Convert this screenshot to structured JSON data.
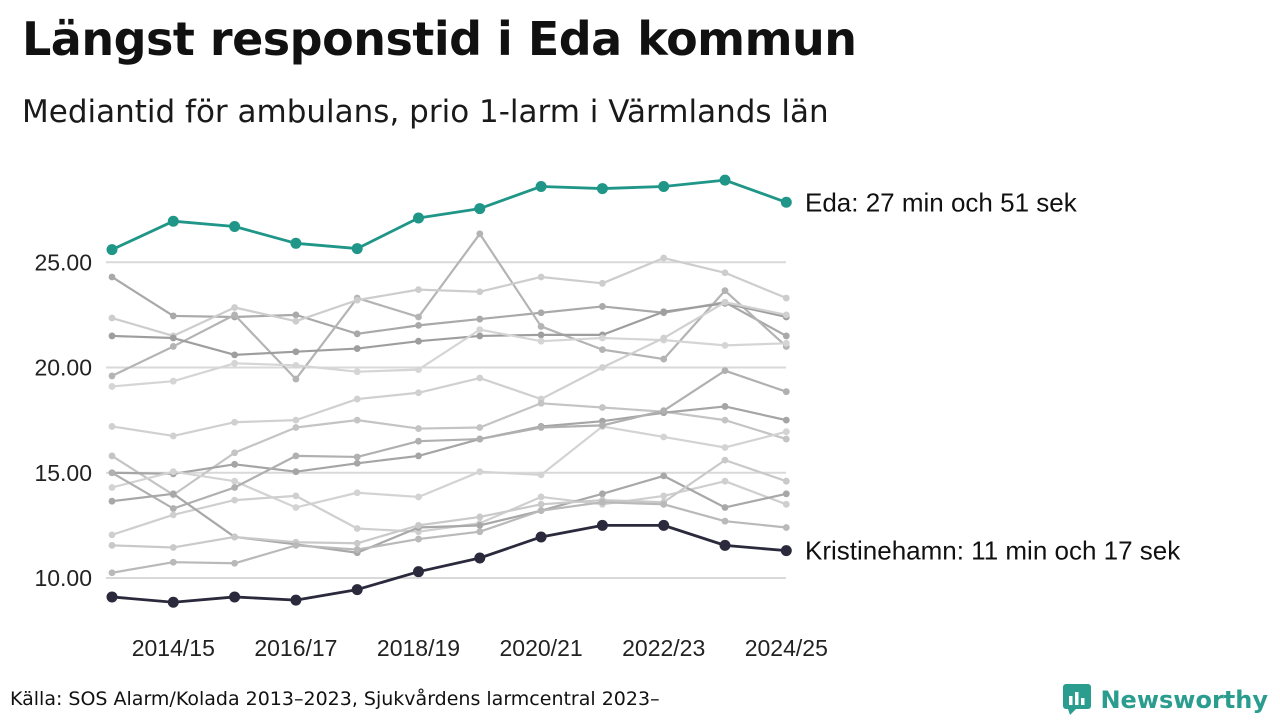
{
  "title": "Längst responstid i Eda kommun",
  "subtitle": "Mediantid för ambulans, prio 1-larm i Värmlands län",
  "source": "Källa: SOS Alarm/Kolada 2013–2023, Sjukvårdens larmcentral 2023–",
  "brand": {
    "name": "Newsworthy",
    "icon": "newsworthy-logo-icon",
    "color": "#2a9d8f"
  },
  "chart_data": {
    "type": "line",
    "title": "Längst responstid i Eda kommun",
    "subtitle": "Mediantid för ambulans, prio 1-larm i Värmlands län",
    "xlabel": "",
    "ylabel": "",
    "x": [
      "2013/14",
      "2014/15",
      "2015/16",
      "2016/17",
      "2017/18",
      "2018/19",
      "2019/20",
      "2020/21",
      "2021/22",
      "2022/23",
      "2023/24",
      "2024/25"
    ],
    "x_tick_labels": [
      "2014/15",
      "2016/17",
      "2018/19",
      "2020/21",
      "2022/23",
      "2024/25"
    ],
    "y_ticks": [
      10,
      15,
      20,
      25
    ],
    "y_tick_labels": [
      "10.00",
      "15.00",
      "20.00",
      "25.00"
    ],
    "ylim": [
      8.5,
      29.5
    ],
    "grid": "horizontal",
    "highlight": [
      {
        "name": "Eda",
        "color": "#1f9688",
        "label": "Eda: 27 min och 51 sek",
        "values": [
          25.6,
          26.95,
          26.7,
          25.9,
          25.65,
          27.1,
          27.55,
          28.6,
          28.5,
          28.6,
          28.9,
          27.85
        ]
      },
      {
        "name": "Kristinehamn",
        "color": "#2b2a3d",
        "label": "Kristinehamn: 11 min och 17 sek",
        "values": [
          9.1,
          8.85,
          9.1,
          8.95,
          9.45,
          10.3,
          10.95,
          11.95,
          12.5,
          12.5,
          11.55,
          11.3
        ]
      }
    ],
    "background_series": [
      {
        "color": "#a9a9a9",
        "values": [
          24.3,
          22.45,
          22.4,
          22.5,
          21.6,
          22.0,
          22.3,
          22.6,
          22.9,
          22.6,
          23.1,
          21.5
        ]
      },
      {
        "color": "#b4b4b4",
        "values": [
          19.6,
          21.0,
          22.5,
          19.45,
          23.3,
          22.4,
          26.35,
          21.95,
          20.85,
          20.4,
          23.65,
          21.0
        ]
      },
      {
        "color": "#cdcdcd",
        "values": [
          22.35,
          21.5,
          22.85,
          22.2,
          23.2,
          23.7,
          23.6,
          24.3,
          24.0,
          25.2,
          24.5,
          23.3
        ]
      },
      {
        "color": "#9e9e9e",
        "values": [
          21.5,
          21.4,
          20.6,
          20.75,
          20.9,
          21.25,
          21.5,
          21.55,
          21.55,
          22.65,
          23.05,
          22.4
        ]
      },
      {
        "color": "#d5d5d5",
        "values": [
          19.1,
          19.35,
          20.2,
          20.1,
          19.8,
          19.9,
          21.8,
          21.25,
          21.4,
          21.3,
          21.05,
          21.15
        ]
      },
      {
        "color": "#d0d0d0",
        "values": [
          17.2,
          16.75,
          17.4,
          17.5,
          18.5,
          18.8,
          19.5,
          18.5,
          20.0,
          21.4,
          23.1,
          22.5
        ]
      },
      {
        "color": "#c4c4c4",
        "values": [
          15.8,
          13.95,
          15.95,
          17.15,
          17.5,
          17.1,
          17.15,
          18.3,
          18.1,
          17.9,
          17.5,
          16.6
        ]
      },
      {
        "color": "#a5a5a5",
        "values": [
          15.0,
          14.95,
          15.4,
          15.05,
          15.45,
          15.8,
          16.6,
          17.2,
          17.45,
          17.85,
          18.15,
          17.5
        ]
      },
      {
        "color": "#d3d3d3",
        "values": [
          14.3,
          15.05,
          14.6,
          13.35,
          14.05,
          13.85,
          15.05,
          14.9,
          17.2,
          16.7,
          16.2,
          16.95
        ]
      },
      {
        "color": "#b0b0b0",
        "values": [
          15.0,
          13.3,
          14.3,
          15.8,
          15.75,
          16.5,
          16.6,
          17.15,
          17.25,
          17.95,
          19.85,
          18.85
        ]
      },
      {
        "color": "#cfcfcf",
        "values": [
          12.05,
          13.0,
          13.7,
          13.9,
          12.35,
          12.2,
          12.6,
          13.85,
          13.5,
          13.9,
          14.6,
          13.5
        ]
      },
      {
        "color": "#a8a8a8",
        "values": [
          13.65,
          14.0,
          11.95,
          11.6,
          11.2,
          12.4,
          12.5,
          13.2,
          14.0,
          14.85,
          13.35,
          14.0
        ]
      },
      {
        "color": "#c9c9c9",
        "values": [
          11.55,
          11.45,
          11.95,
          11.7,
          11.65,
          12.5,
          12.9,
          13.5,
          13.7,
          13.6,
          15.6,
          14.6
        ]
      },
      {
        "color": "#b9b9b9",
        "values": [
          10.25,
          10.75,
          10.7,
          11.55,
          11.35,
          11.85,
          12.2,
          13.2,
          13.6,
          13.5,
          12.7,
          12.4
        ]
      }
    ]
  }
}
